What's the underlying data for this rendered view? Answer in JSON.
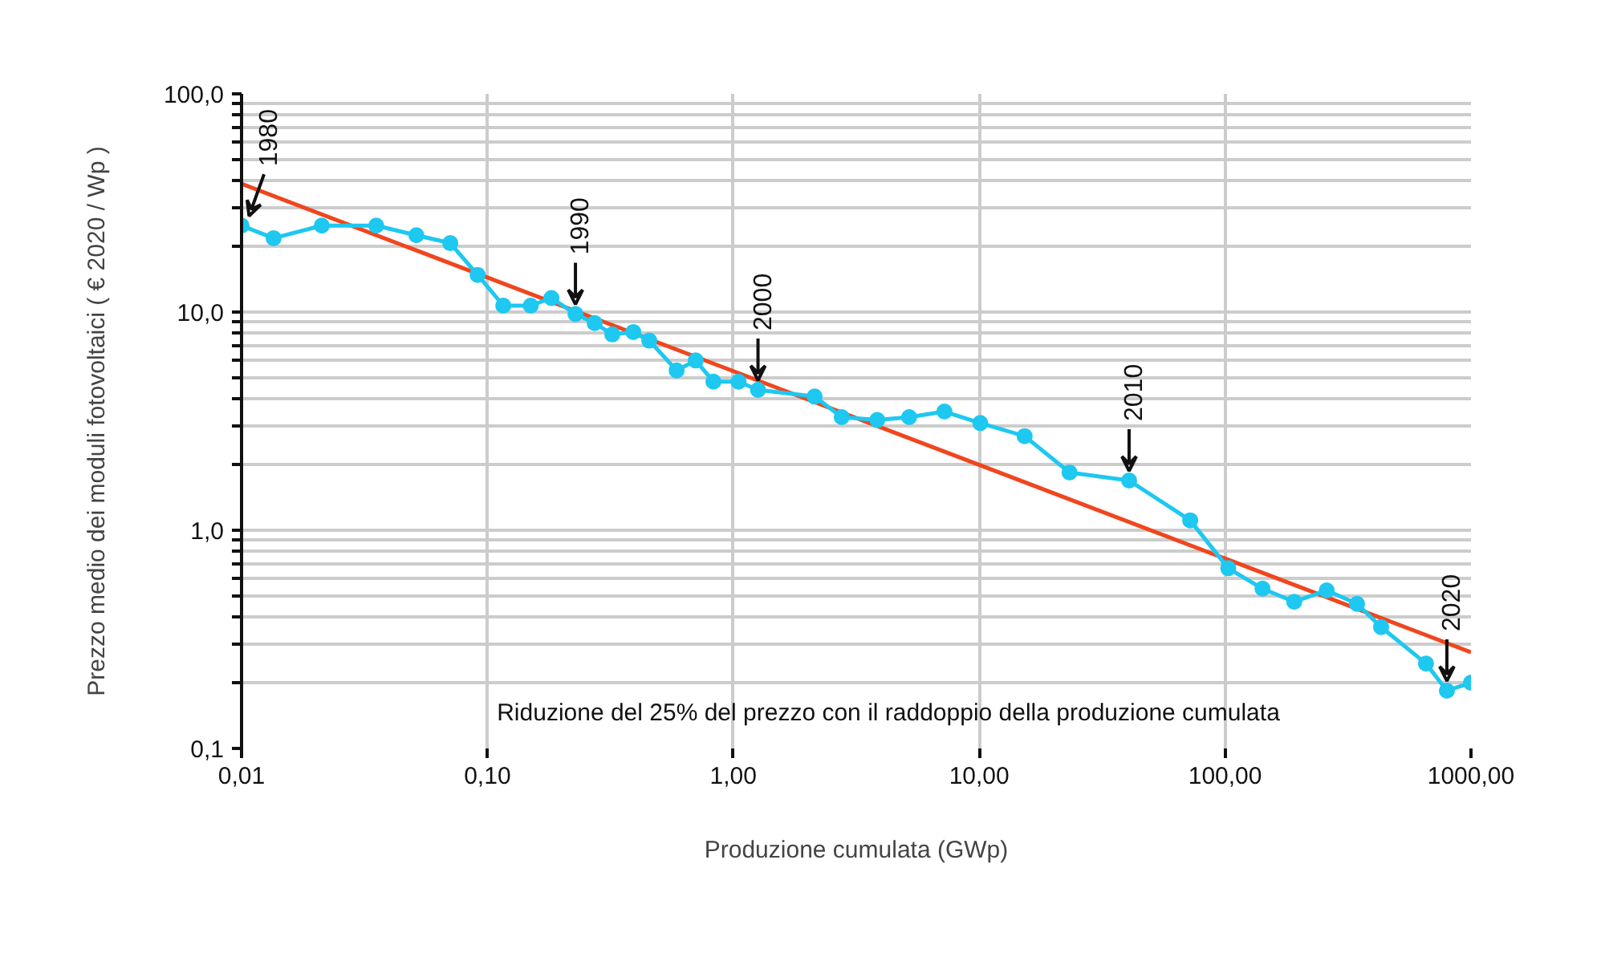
{
  "chart_data": {
    "type": "line",
    "xlabel": "Produzione cumulata (GWp)",
    "ylabel": "Prezzo medio dei moduli fotovoltaici ( € 2020 / Wp )",
    "log": "xy",
    "grid": true,
    "marker": "circle",
    "line_style": "solid",
    "xlim": [
      0.01,
      1000
    ],
    "ylim": [
      0.1,
      100
    ],
    "xticks": [
      {
        "value": 0.01,
        "label": "0,01"
      },
      {
        "value": 0.1,
        "label": "0,10"
      },
      {
        "value": 1,
        "label": "1,00"
      },
      {
        "value": 10,
        "label": "10,00"
      },
      {
        "value": 100,
        "label": "100,00"
      },
      {
        "value": 1000,
        "label": "1000,00"
      }
    ],
    "yticks": [
      {
        "value": 0.1,
        "label": "0,1"
      },
      {
        "value": 0.2,
        "label": null
      },
      {
        "value": 0.3,
        "label": null
      },
      {
        "value": 0.4,
        "label": null
      },
      {
        "value": 0.5,
        "label": null
      },
      {
        "value": 0.6,
        "label": null
      },
      {
        "value": 0.7,
        "label": null
      },
      {
        "value": 0.8,
        "label": null
      },
      {
        "value": 0.9,
        "label": null
      },
      {
        "value": 1,
        "label": "1,0"
      },
      {
        "value": 2,
        "label": null
      },
      {
        "value": 3,
        "label": null
      },
      {
        "value": 4,
        "label": null
      },
      {
        "value": 5,
        "label": null
      },
      {
        "value": 6,
        "label": null
      },
      {
        "value": 7,
        "label": null
      },
      {
        "value": 8,
        "label": null
      },
      {
        "value": 9,
        "label": null
      },
      {
        "value": 10,
        "label": "10,0"
      },
      {
        "value": 20,
        "label": null
      },
      {
        "value": 30,
        "label": null
      },
      {
        "value": 40,
        "label": null
      },
      {
        "value": 50,
        "label": null
      },
      {
        "value": 60,
        "label": null
      },
      {
        "value": 70,
        "label": null
      },
      {
        "value": 80,
        "label": null
      },
      {
        "value": 90,
        "label": null
      },
      {
        "value": 100,
        "label": "100,0"
      }
    ],
    "series": [
      {
        "color": "#f0461e",
        "marker": "none",
        "x": [
          0.01,
          1000
        ],
        "values": [
          38.7,
          0.276
        ]
      },
      {
        "color": "#1ec8f0",
        "x": [
          0.01,
          0.0135,
          0.0212,
          0.0353,
          0.0514,
          0.0706,
          0.0912,
          0.116,
          0.15,
          0.182,
          0.228,
          0.273,
          0.322,
          0.392,
          0.455,
          0.588,
          0.703,
          0.83,
          1.05,
          1.26,
          2.14,
          2.76,
          3.85,
          5.19,
          7.22,
          10.1,
          15.3,
          23.3,
          40.7,
          72.1,
          103,
          142,
          191,
          259,
          344,
          431,
          656,
          798,
          1000
        ],
        "values": [
          24.9,
          21.8,
          24.9,
          24.9,
          22.5,
          20.7,
          14.8,
          10.7,
          10.7,
          11.6,
          9.8,
          8.9,
          7.9,
          8.1,
          7.4,
          5.4,
          6.0,
          4.8,
          4.8,
          4.4,
          4.1,
          3.3,
          3.2,
          3.3,
          3.5,
          3.1,
          2.7,
          1.84,
          1.69,
          1.11,
          0.67,
          0.54,
          0.47,
          0.53,
          0.46,
          0.36,
          0.245,
          0.184,
          0.2
        ]
      }
    ],
    "annotations": [
      {
        "text": "1980",
        "x": 0.01,
        "y": 24.9
      },
      {
        "text": "1990",
        "x": 0.228,
        "y": 9.8
      },
      {
        "text": "2000",
        "x": 1.26,
        "y": 4.4
      },
      {
        "text": "2010",
        "x": 40.7,
        "y": 1.69
      },
      {
        "text": "2020",
        "x": 798,
        "y": 0.184
      },
      "Riduzione del 25% del prezzo con il raddoppio della produzione cumulata"
    ]
  }
}
